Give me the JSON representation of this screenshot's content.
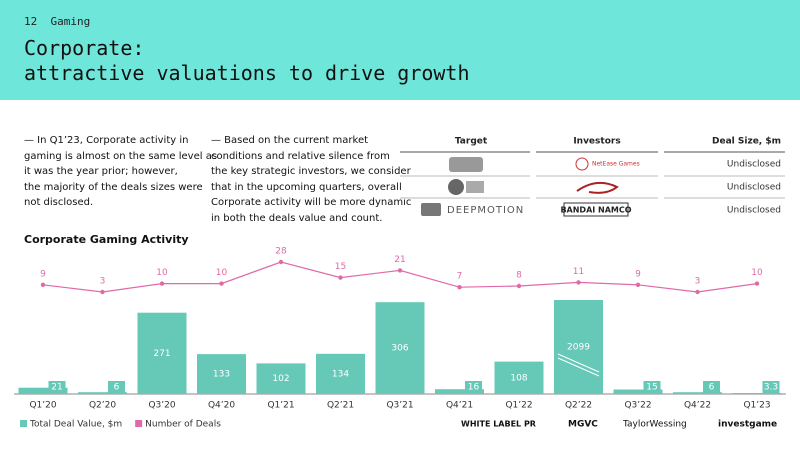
{
  "header": {
    "page_number": "12",
    "section": "Gaming",
    "title_lines": [
      "Corporate:",
      "attractive valuations to drive growth"
    ]
  },
  "paragraphs": [
    [
      "— In Q1’23, Corporate activity in",
      "gaming is almost on the same level as",
      "it was the year prior; however,",
      "the majority of the deals sizes were",
      "not disclosed."
    ],
    [
      "— Based on the current market",
      "conditions and relative silence from",
      "the key strategic investors, we consider",
      "that in the upcoming quarters, overall",
      "Corporate activity will be more dynamic",
      "in both the deals value and count."
    ]
  ],
  "table": {
    "columns": [
      "Target",
      "Investors",
      "Deal Size, $m"
    ],
    "rows": [
      {
        "investors": "NetEase Games",
        "deal_size": "Undisclosed"
      },
      {
        "deal_size": "Undisclosed"
      },
      {
        "target": "DEEPMOTION",
        "investors": "BANDAI NAMCO",
        "deal_size": "Undisclosed"
      }
    ]
  },
  "chart_data": {
    "type": "combo",
    "title": "Corporate Gaming Activity",
    "categories": [
      "Q1’20",
      "Q2’20",
      "Q3’20",
      "Q4’20",
      "Q1’21",
      "Q2’21",
      "Q3’21",
      "Q4’21",
      "Q1’22",
      "Q2’22",
      "Q3’22",
      "Q4’22",
      "Q1’23"
    ],
    "series": [
      {
        "name": "Total Deal Value, $m",
        "type": "bar",
        "color": "#66c9b8",
        "values": [
          21,
          6,
          271,
          133,
          102,
          134,
          306,
          16,
          108,
          2099,
          15,
          6,
          3.3
        ]
      },
      {
        "name": "Number of Deals",
        "type": "line",
        "color": "#e06aa8",
        "values": [
          9,
          3,
          10,
          10,
          28,
          15,
          21,
          7,
          8,
          11,
          9,
          3,
          10
        ]
      }
    ]
  },
  "footer_logos": [
    "WHITE LABEL PR",
    "MGVC",
    "TaylorWessing",
    "investgame"
  ]
}
